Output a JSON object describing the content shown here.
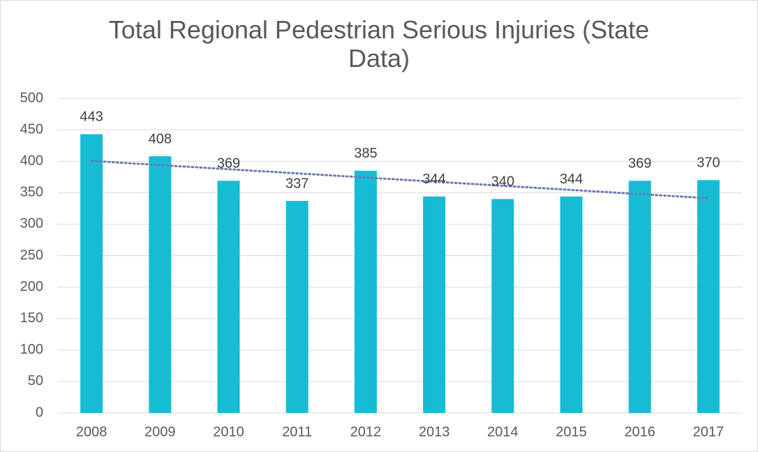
{
  "chart_data": {
    "type": "bar",
    "title": "Total Regional Pedestrian Serious Injuries (State Data)",
    "categories": [
      "2008",
      "2009",
      "2010",
      "2011",
      "2012",
      "2013",
      "2014",
      "2015",
      "2016",
      "2017"
    ],
    "values": [
      443,
      408,
      369,
      337,
      385,
      344,
      340,
      344,
      369,
      370
    ],
    "color": "#17bcd4",
    "ylim": [
      0,
      500
    ],
    "yticks": [
      0,
      50,
      100,
      150,
      200,
      250,
      300,
      350,
      400,
      450,
      500
    ],
    "grid": true,
    "trendline": "linear",
    "trendline_color": "#6b7bb5"
  }
}
